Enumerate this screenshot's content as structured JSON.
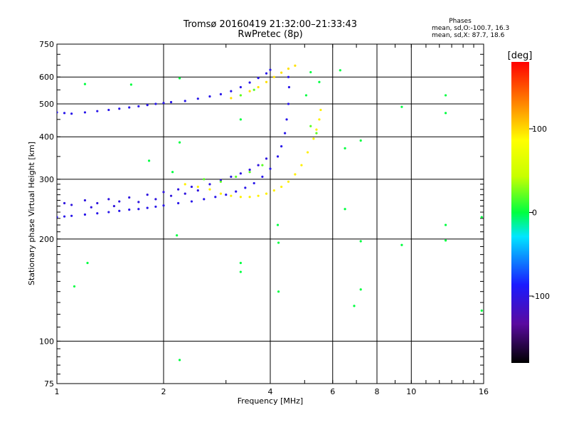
{
  "chart_data": {
    "type": "scatter",
    "title": "Tromsø 20160419 21:32:00–21:33:43",
    "subtitle": "RwPretec (8p)",
    "xlabel": "Frequency [MHz]",
    "ylabel": "Stationary phase Virtual Height [km]",
    "xscale": "log",
    "yscale": "log",
    "xlim": [
      1,
      16
    ],
    "ylim": [
      75,
      750
    ],
    "x_ticks": [
      1,
      2,
      4,
      6,
      8,
      10,
      16
    ],
    "x_tick_labels": [
      "1",
      "2",
      "4",
      "6",
      "8",
      "10",
      "16"
    ],
    "y_ticks": [
      75,
      100,
      200,
      300,
      400,
      500,
      600,
      750
    ],
    "y_tick_labels": [
      "75",
      "100",
      "200",
      "300",
      "400",
      "500",
      "600",
      "750"
    ],
    "grid": true,
    "stats": {
      "heading": "Phases",
      "line_o": "mean, sd,O:-100.7, 16.3",
      "line_x": "mean, sd,X:  87.7, 18.6"
    },
    "colorbar": {
      "label": "[deg]",
      "range": [
        -180,
        180
      ],
      "ticks": [
        100,
        0,
        -100
      ],
      "tick_labels": [
        "100",
        "0",
        "-100"
      ]
    },
    "series": [
      {
        "trace": "O-mode F1/F2 lower trace",
        "phase_deg": -100,
        "points": [
          [
            1.0,
            232
          ],
          [
            1.05,
            233
          ],
          [
            1.1,
            234
          ],
          [
            1.2,
            236
          ],
          [
            1.3,
            238
          ],
          [
            1.4,
            240
          ],
          [
            1.5,
            242
          ],
          [
            1.6,
            244
          ],
          [
            1.7,
            245
          ],
          [
            1.8,
            247
          ],
          [
            1.9,
            249
          ],
          [
            2.0,
            251
          ],
          [
            2.2,
            255
          ],
          [
            2.4,
            258
          ],
          [
            2.6,
            262
          ],
          [
            2.8,
            266
          ],
          [
            3.0,
            270
          ],
          [
            3.2,
            276
          ],
          [
            3.4,
            283
          ],
          [
            3.6,
            292
          ],
          [
            3.8,
            305
          ],
          [
            4.0,
            322
          ],
          [
            4.2,
            350
          ],
          [
            4.3,
            375
          ],
          [
            4.4,
            410
          ],
          [
            4.45,
            450
          ],
          [
            4.5,
            500
          ],
          [
            4.52,
            560
          ],
          [
            4.5,
            600
          ]
        ]
      },
      {
        "trace": "O-mode scattered band",
        "phase_deg": -105,
        "points": [
          [
            1.05,
            255
          ],
          [
            1.1,
            252
          ],
          [
            1.2,
            260
          ],
          [
            1.25,
            248
          ],
          [
            1.3,
            255
          ],
          [
            1.4,
            262
          ],
          [
            1.45,
            250
          ],
          [
            1.5,
            258
          ],
          [
            1.6,
            265
          ],
          [
            1.7,
            257
          ],
          [
            1.8,
            270
          ],
          [
            1.9,
            262
          ],
          [
            2.0,
            275
          ],
          [
            2.1,
            268
          ],
          [
            2.2,
            280
          ],
          [
            2.3,
            272
          ],
          [
            2.4,
            285
          ],
          [
            2.5,
            278
          ],
          [
            2.7,
            290
          ],
          [
            2.9,
            298
          ],
          [
            3.1,
            305
          ],
          [
            3.3,
            312
          ],
          [
            3.5,
            320
          ],
          [
            3.7,
            330
          ],
          [
            3.9,
            345
          ]
        ]
      },
      {
        "trace": "O-mode upper trace",
        "phase_deg": -100,
        "points": [
          [
            1.0,
            472
          ],
          [
            1.05,
            470
          ],
          [
            1.1,
            468
          ],
          [
            1.2,
            472
          ],
          [
            1.3,
            476
          ],
          [
            1.4,
            480
          ],
          [
            1.5,
            484
          ],
          [
            1.6,
            488
          ],
          [
            1.7,
            492
          ],
          [
            1.8,
            496
          ],
          [
            1.9,
            500
          ],
          [
            2.0,
            503
          ],
          [
            2.1,
            506
          ],
          [
            2.3,
            510
          ],
          [
            2.5,
            518
          ],
          [
            2.7,
            526
          ],
          [
            2.9,
            534
          ],
          [
            3.1,
            545
          ],
          [
            3.3,
            560
          ],
          [
            3.5,
            578
          ],
          [
            3.7,
            596
          ],
          [
            3.9,
            615
          ],
          [
            4.0,
            630
          ]
        ]
      },
      {
        "trace": "X-mode lower trace",
        "phase_deg": 95,
        "points": [
          [
            2.3,
            290
          ],
          [
            2.5,
            285
          ],
          [
            2.7,
            280
          ],
          [
            2.9,
            272
          ],
          [
            3.1,
            268
          ],
          [
            3.3,
            266
          ],
          [
            3.5,
            266
          ],
          [
            3.7,
            268
          ],
          [
            3.9,
            272
          ],
          [
            4.1,
            278
          ],
          [
            4.3,
            285
          ],
          [
            4.5,
            295
          ],
          [
            4.7,
            310
          ],
          [
            4.9,
            330
          ],
          [
            5.1,
            360
          ],
          [
            5.3,
            395
          ],
          [
            5.4,
            420
          ],
          [
            5.5,
            450
          ],
          [
            5.55,
            480
          ]
        ]
      },
      {
        "trace": "X-mode upper trace",
        "phase_deg": 100,
        "points": [
          [
            3.1,
            520
          ],
          [
            3.3,
            530
          ],
          [
            3.5,
            545
          ],
          [
            3.7,
            560
          ],
          [
            3.9,
            580
          ],
          [
            4.1,
            600
          ],
          [
            4.3,
            618
          ],
          [
            4.5,
            635
          ],
          [
            4.7,
            648
          ]
        ]
      },
      {
        "trace": "mixed-phase echoes",
        "phase_deg": 20,
        "points": [
          [
            2.6,
            300
          ],
          [
            2.9,
            295
          ],
          [
            3.2,
            305
          ],
          [
            3.5,
            315
          ],
          [
            3.8,
            330
          ],
          [
            3.3,
            530
          ],
          [
            3.6,
            550
          ],
          [
            5.2,
            430
          ],
          [
            5.4,
            410
          ]
        ]
      },
      {
        "trace": "isolated echoes",
        "phase_deg": 0,
        "points": [
          [
            1.12,
            145
          ],
          [
            1.2,
            572
          ],
          [
            1.22,
            170
          ],
          [
            1.62,
            570
          ],
          [
            1.82,
            340
          ],
          [
            2.12,
            315
          ],
          [
            2.18,
            205
          ],
          [
            2.22,
            385
          ],
          [
            2.22,
            595
          ],
          [
            2.22,
            88
          ],
          [
            3.3,
            170
          ],
          [
            3.3,
            160
          ],
          [
            3.3,
            450
          ],
          [
            4.2,
            220
          ],
          [
            4.22,
            195
          ],
          [
            4.22,
            140
          ],
          [
            5.05,
            530
          ],
          [
            5.2,
            620
          ],
          [
            5.5,
            580
          ],
          [
            6.3,
            628
          ],
          [
            6.5,
            370
          ],
          [
            6.5,
            245
          ],
          [
            6.9,
            127
          ],
          [
            7.2,
            390
          ],
          [
            7.2,
            197
          ],
          [
            7.2,
            142
          ],
          [
            9.4,
            490
          ],
          [
            9.4,
            192
          ],
          [
            12.5,
            530
          ],
          [
            12.5,
            470
          ],
          [
            12.5,
            220
          ],
          [
            12.5,
            198
          ],
          [
            15.8,
            232
          ],
          [
            15.8,
            123
          ]
        ]
      }
    ]
  }
}
